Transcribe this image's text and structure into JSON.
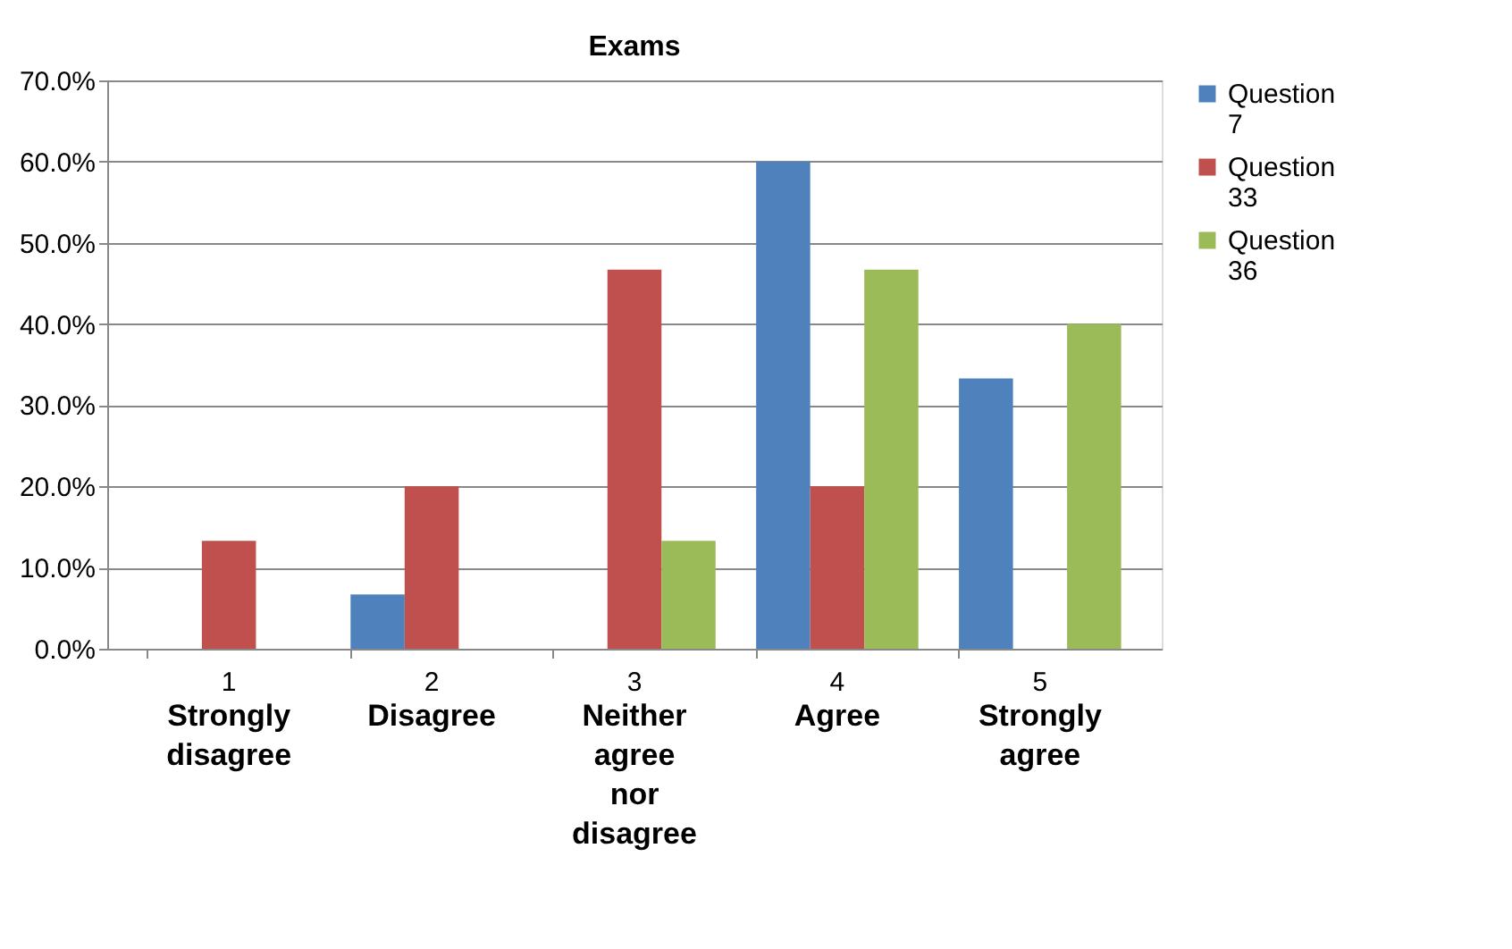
{
  "chart_data": {
    "type": "bar",
    "title": "Exams",
    "categories": [
      "1",
      "2",
      "3",
      "4",
      "5"
    ],
    "series": [
      {
        "name": "Question 7",
        "color": "#4f81bd",
        "values": [
          0,
          6.7,
          0,
          60,
          33.3
        ]
      },
      {
        "name": "Question 33",
        "color": "#c0504d",
        "values": [
          13.3,
          20,
          46.7,
          20,
          0
        ]
      },
      {
        "name": "Question 36",
        "color": "#9bbb59",
        "values": [
          0,
          0,
          13.3,
          46.7,
          40
        ]
      }
    ],
    "annotations": [
      "Strongly disagree",
      "Disagree",
      "Neither agree nor disagree",
      "Agree",
      "Strongly agree"
    ],
    "ylim": [
      0,
      70
    ],
    "yticks": [
      {
        "value": 0,
        "label": "0.0%"
      },
      {
        "value": 10,
        "label": "10.0%"
      },
      {
        "value": 20,
        "label": "20.0%"
      },
      {
        "value": 30,
        "label": "30.0%"
      },
      {
        "value": 40,
        "label": "40.0%"
      },
      {
        "value": 50,
        "label": "50.0%"
      },
      {
        "value": 60,
        "label": "60.0%"
      },
      {
        "value": 70,
        "label": "70.0%"
      }
    ],
    "grid": "y",
    "legend": "right"
  }
}
